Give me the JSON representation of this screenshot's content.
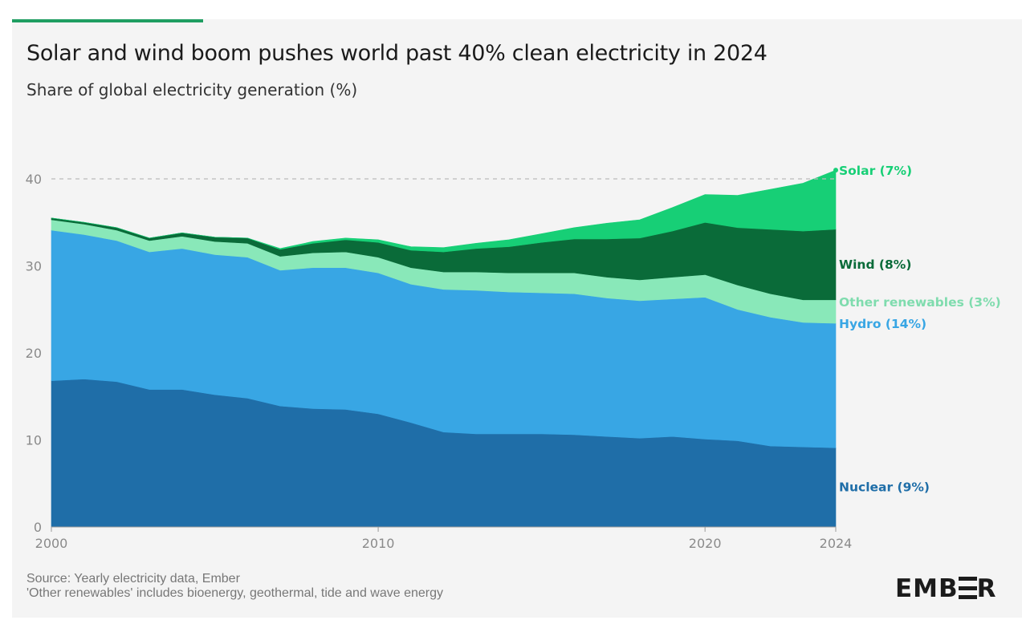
{
  "header": {
    "title": "Solar and wind boom pushes world past 40% clean electricity in 2024",
    "subtitle": "Share of global electricity generation (%)"
  },
  "footer": {
    "source": "Source: Yearly electricity data, Ember",
    "note": "'Other renewables' includes bioenergy, geothermal, tide and wave energy"
  },
  "logo": {
    "before": "EMB",
    "after": "R",
    "icon": "ember-e-logo-icon"
  },
  "colors": {
    "accent": "#1f9e62",
    "nuclear": "#1f6ea8",
    "hydro": "#38a6e4",
    "other_renewables": "#89e8b9",
    "wind": "#0a6b39",
    "solar": "#17cf76",
    "axis_text": "#8a8a8a",
    "reference_line": "#bbbbbb"
  },
  "chart_data": {
    "type": "area",
    "stacked": true,
    "x": [
      2000,
      2001,
      2002,
      2003,
      2004,
      2005,
      2006,
      2007,
      2008,
      2009,
      2010,
      2011,
      2012,
      2013,
      2014,
      2015,
      2016,
      2017,
      2018,
      2019,
      2020,
      2021,
      2022,
      2023,
      2024
    ],
    "series": [
      {
        "name": "Nuclear (9%)",
        "key": "nuclear",
        "values": [
          16.8,
          17.0,
          16.7,
          15.8,
          15.8,
          15.2,
          14.8,
          13.9,
          13.6,
          13.5,
          13.0,
          12.0,
          10.9,
          10.7,
          10.7,
          10.7,
          10.6,
          10.4,
          10.2,
          10.4,
          10.1,
          9.9,
          9.3,
          9.2,
          9.1
        ]
      },
      {
        "name": "Hydro (14%)",
        "key": "hydro",
        "values": [
          17.3,
          16.6,
          16.2,
          15.8,
          16.2,
          16.1,
          16.2,
          15.6,
          16.2,
          16.3,
          16.2,
          15.9,
          16.4,
          16.5,
          16.3,
          16.2,
          16.2,
          15.9,
          15.8,
          15.8,
          16.3,
          15.1,
          14.8,
          14.3,
          14.3
        ]
      },
      {
        "name": "Other renewables (3%)",
        "key": "other_renewables",
        "values": [
          1.2,
          1.2,
          1.2,
          1.3,
          1.4,
          1.5,
          1.6,
          1.6,
          1.7,
          1.8,
          1.8,
          1.9,
          2.0,
          2.1,
          2.2,
          2.3,
          2.4,
          2.4,
          2.4,
          2.5,
          2.6,
          2.8,
          2.7,
          2.6,
          2.7
        ]
      },
      {
        "name": "Wind (8%)",
        "key": "wind",
        "values": [
          0.2,
          0.2,
          0.3,
          0.3,
          0.4,
          0.5,
          0.6,
          0.8,
          1.1,
          1.4,
          1.7,
          2.0,
          2.3,
          2.7,
          3.0,
          3.5,
          3.9,
          4.4,
          4.8,
          5.3,
          6.0,
          6.6,
          7.4,
          7.9,
          8.1
        ]
      },
      {
        "name": "Solar (7%)",
        "key": "solar",
        "values": [
          0.0,
          0.0,
          0.0,
          0.0,
          0.0,
          0.0,
          0.0,
          0.1,
          0.2,
          0.2,
          0.3,
          0.4,
          0.5,
          0.6,
          0.8,
          1.0,
          1.3,
          1.8,
          2.1,
          2.7,
          3.2,
          3.7,
          4.6,
          5.5,
          6.8
        ]
      }
    ],
    "y_ticks": [
      0,
      10,
      20,
      30,
      40
    ],
    "x_ticks": [
      2000,
      2010,
      2020,
      2024
    ],
    "ylim": [
      0,
      45
    ],
    "xlim": [
      2000,
      2024
    ],
    "reference_line": 40,
    "grid": false,
    "legend": "direct labels at right end"
  }
}
